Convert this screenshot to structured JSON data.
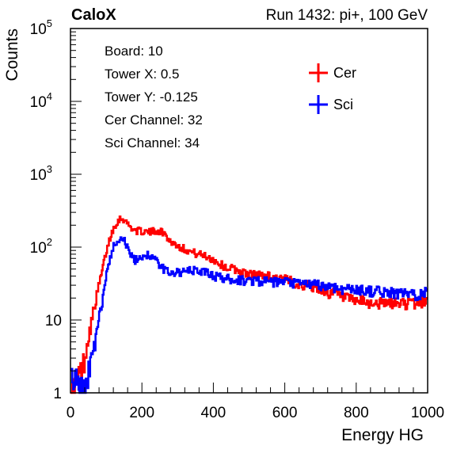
{
  "header": {
    "brand": "CaloX",
    "run_label": "Run 1432: pi+, 100 GeV"
  },
  "info_box": {
    "lines": [
      "Board: 10",
      "Tower X: 0.5",
      "Tower Y: -0.125",
      "Cer Channel: 32",
      "Sci Channel: 34"
    ]
  },
  "legend": [
    {
      "name": "Cer",
      "color": "#ff0000"
    },
    {
      "name": "Sci",
      "color": "#0000ff"
    }
  ],
  "chart_data": {
    "type": "line",
    "style": "histogram-step",
    "xlabel": "Energy HG",
    "ylabel": "Counts",
    "xlim": [
      0,
      1000
    ],
    "ylim": [
      1,
      100000
    ],
    "yscale": "log",
    "grid": false,
    "legend_position": "top-right",
    "x_ticks": [
      0,
      200,
      400,
      600,
      800,
      1000
    ],
    "y_ticks": [
      {
        "value": 1,
        "label": "1"
      },
      {
        "value": 10,
        "label": "10"
      },
      {
        "value": 100,
        "label": "10",
        "exp": "2"
      },
      {
        "value": 1000,
        "label": "10",
        "exp": "3"
      },
      {
        "value": 10000,
        "label": "10",
        "exp": "4"
      },
      {
        "value": 100000,
        "label": "10",
        "exp": "5"
      }
    ],
    "x": [
      0,
      20,
      40,
      50,
      60,
      70,
      80,
      90,
      100,
      110,
      120,
      130,
      140,
      150,
      160,
      170,
      180,
      200,
      220,
      240,
      260,
      280,
      300,
      320,
      340,
      360,
      380,
      400,
      420,
      440,
      460,
      480,
      500,
      520,
      540,
      560,
      580,
      600,
      620,
      640,
      660,
      680,
      700,
      720,
      740,
      760,
      780,
      800,
      820,
      840,
      860,
      880,
      900,
      920,
      940,
      960,
      980,
      1000
    ],
    "series": [
      {
        "name": "Cer",
        "color": "#ff0000",
        "values": [
          1,
          1.5,
          3,
          6,
          10,
          18,
          30,
          50,
          85,
          130,
          180,
          220,
          250,
          240,
          210,
          185,
          170,
          165,
          160,
          170,
          160,
          120,
          105,
          95,
          85,
          80,
          75,
          68,
          58,
          52,
          50,
          45,
          42,
          42,
          41,
          40,
          38,
          36,
          34,
          31,
          30,
          28,
          26,
          24,
          23,
          21,
          19,
          18,
          18,
          17,
          17,
          17,
          17,
          17,
          17,
          17,
          17,
          19
        ]
      },
      {
        "name": "Sci",
        "color": "#0000ff",
        "values": [
          2,
          1.5,
          1,
          2,
          3,
          5,
          10,
          20,
          40,
          70,
          100,
          120,
          135,
          130,
          95,
          75,
          65,
          75,
          80,
          65,
          50,
          46,
          45,
          45,
          48,
          47,
          45,
          41,
          38,
          37,
          36,
          35,
          35,
          35,
          34,
          33,
          33,
          33,
          32,
          32,
          31,
          31,
          30,
          29,
          28,
          27,
          27,
          26,
          26,
          25,
          25,
          24,
          24,
          23,
          23,
          22,
          23,
          25
        ]
      }
    ]
  }
}
